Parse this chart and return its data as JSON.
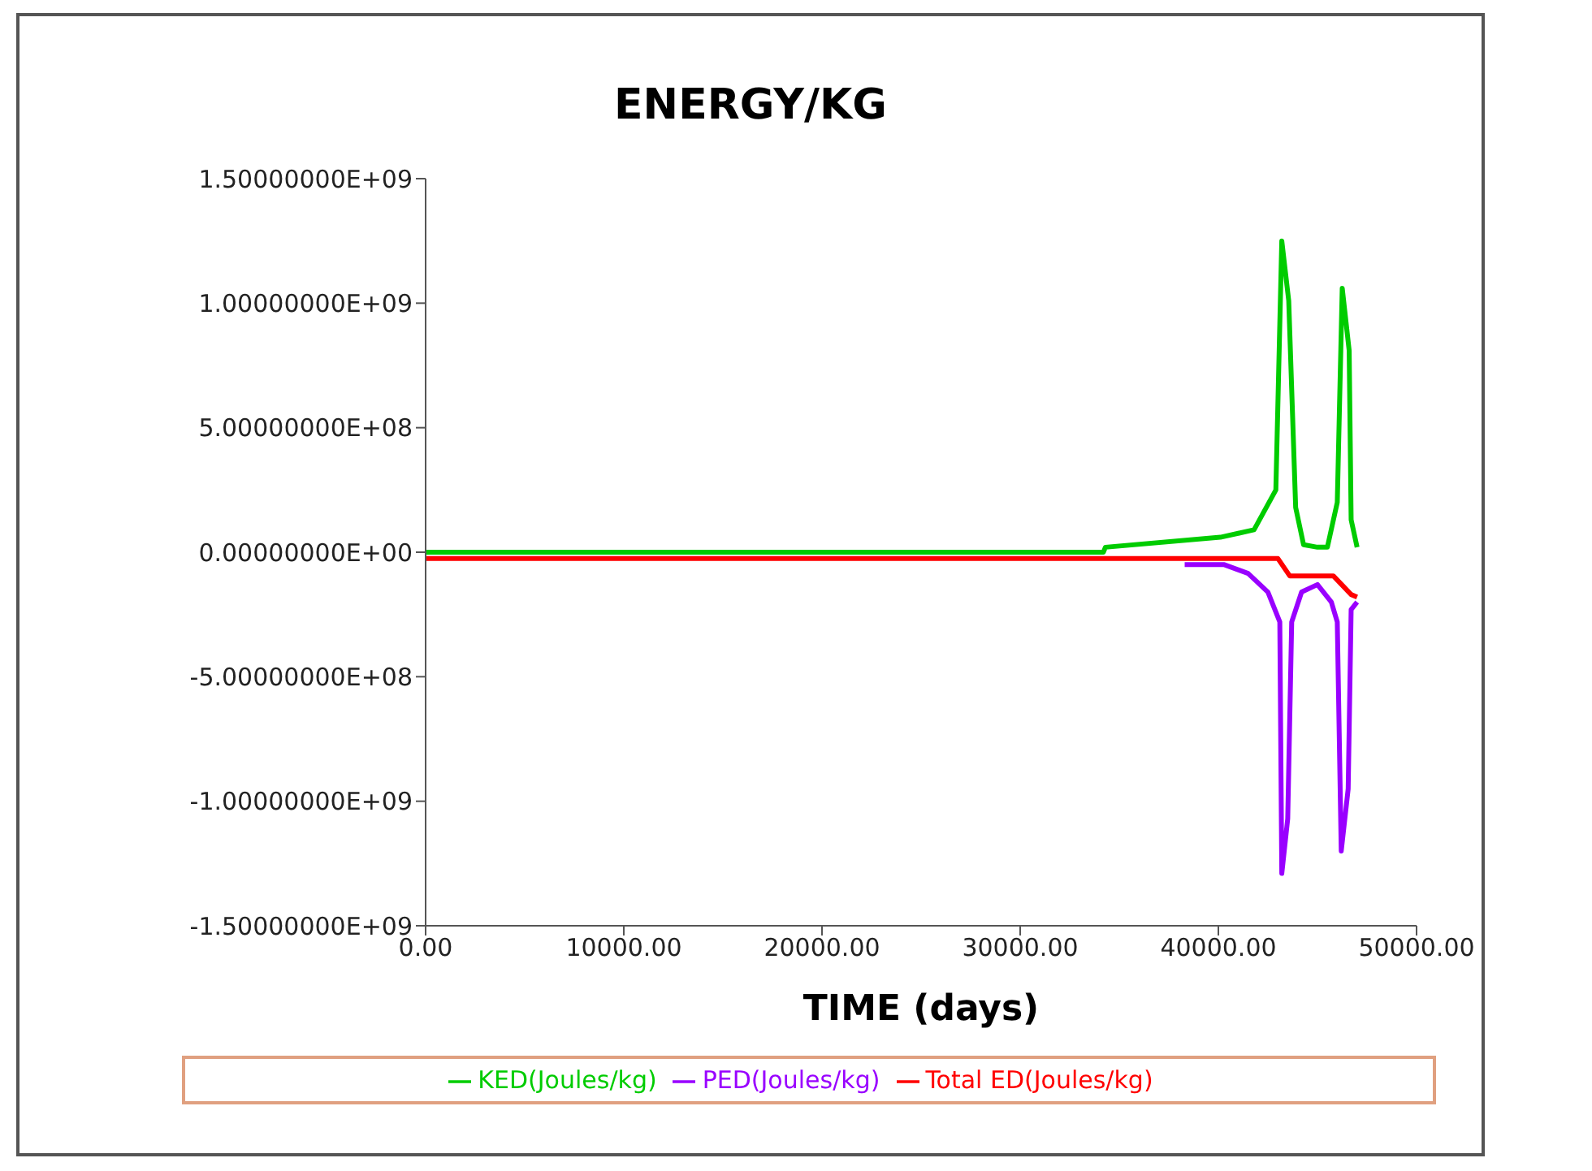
{
  "chart_data": {
    "type": "line",
    "title": "ENERGY/KG",
    "xlabel": "TIME (days)",
    "xlim": [
      0,
      50000
    ],
    "xticks": [
      {
        "value": 0,
        "label": "0.00"
      },
      {
        "value": 10000,
        "label": "10000.00"
      },
      {
        "value": 20000,
        "label": "20000.00"
      },
      {
        "value": 30000,
        "label": "30000.00"
      },
      {
        "value": 40000,
        "label": "40000.00"
      },
      {
        "value": 50000,
        "label": "50000.00"
      }
    ],
    "ylim": [
      -1500000000,
      1500000000
    ],
    "yticks": [
      {
        "value": -1500000000,
        "label": "-1.50000000E+09"
      },
      {
        "value": -1000000000,
        "label": "-1.00000000E+09"
      },
      {
        "value": -500000000,
        "label": "-5.00000000E+08"
      },
      {
        "value": 0,
        "label": "0.00000000E+00"
      },
      {
        "value": 500000000,
        "label": "5.00000000E+08"
      },
      {
        "value": 1000000000,
        "label": "1.00000000E+09"
      },
      {
        "value": 1500000000,
        "label": "1.50000000E+09"
      }
    ],
    "grid": false,
    "legend": "bottom",
    "series": [
      {
        "name": "KED(Joules/kg)",
        "color": "#00cc00",
        "x": [
          0,
          34200,
          34300,
          40100,
          41800,
          42900,
          43200,
          43550,
          43900,
          44300,
          45000,
          45500,
          46000,
          46250,
          46600,
          46700,
          47000
        ],
        "values": [
          0,
          0,
          20000000,
          60000000,
          90000000,
          250000000,
          1250000000,
          1010000000,
          180000000,
          30000000,
          20000000,
          20000000,
          200000000,
          1060000000,
          810000000,
          130000000,
          20000000
        ]
      },
      {
        "name": "PED(Joules/kg)",
        "color": "#9900ff",
        "x": [
          38300,
          40300,
          41500,
          42500,
          43100,
          43200,
          43500,
          43700,
          44200,
          45000,
          45700,
          46000,
          46200,
          46550,
          46700,
          47000
        ],
        "values": [
          -50000000,
          -50000000,
          -85000000,
          -160000000,
          -280000000,
          -1290000000,
          -1070000000,
          -280000000,
          -160000000,
          -130000000,
          -200000000,
          -280000000,
          -1200000000,
          -950000000,
          -230000000,
          -200000000
        ]
      },
      {
        "name": "Total ED(Joules/kg)",
        "color": "#ff0000",
        "x": [
          0,
          43000,
          43600,
          45800,
          46700,
          47000
        ],
        "values": [
          -25000000,
          -25000000,
          -95000000,
          -95000000,
          -170000000,
          -180000000
        ]
      }
    ]
  }
}
